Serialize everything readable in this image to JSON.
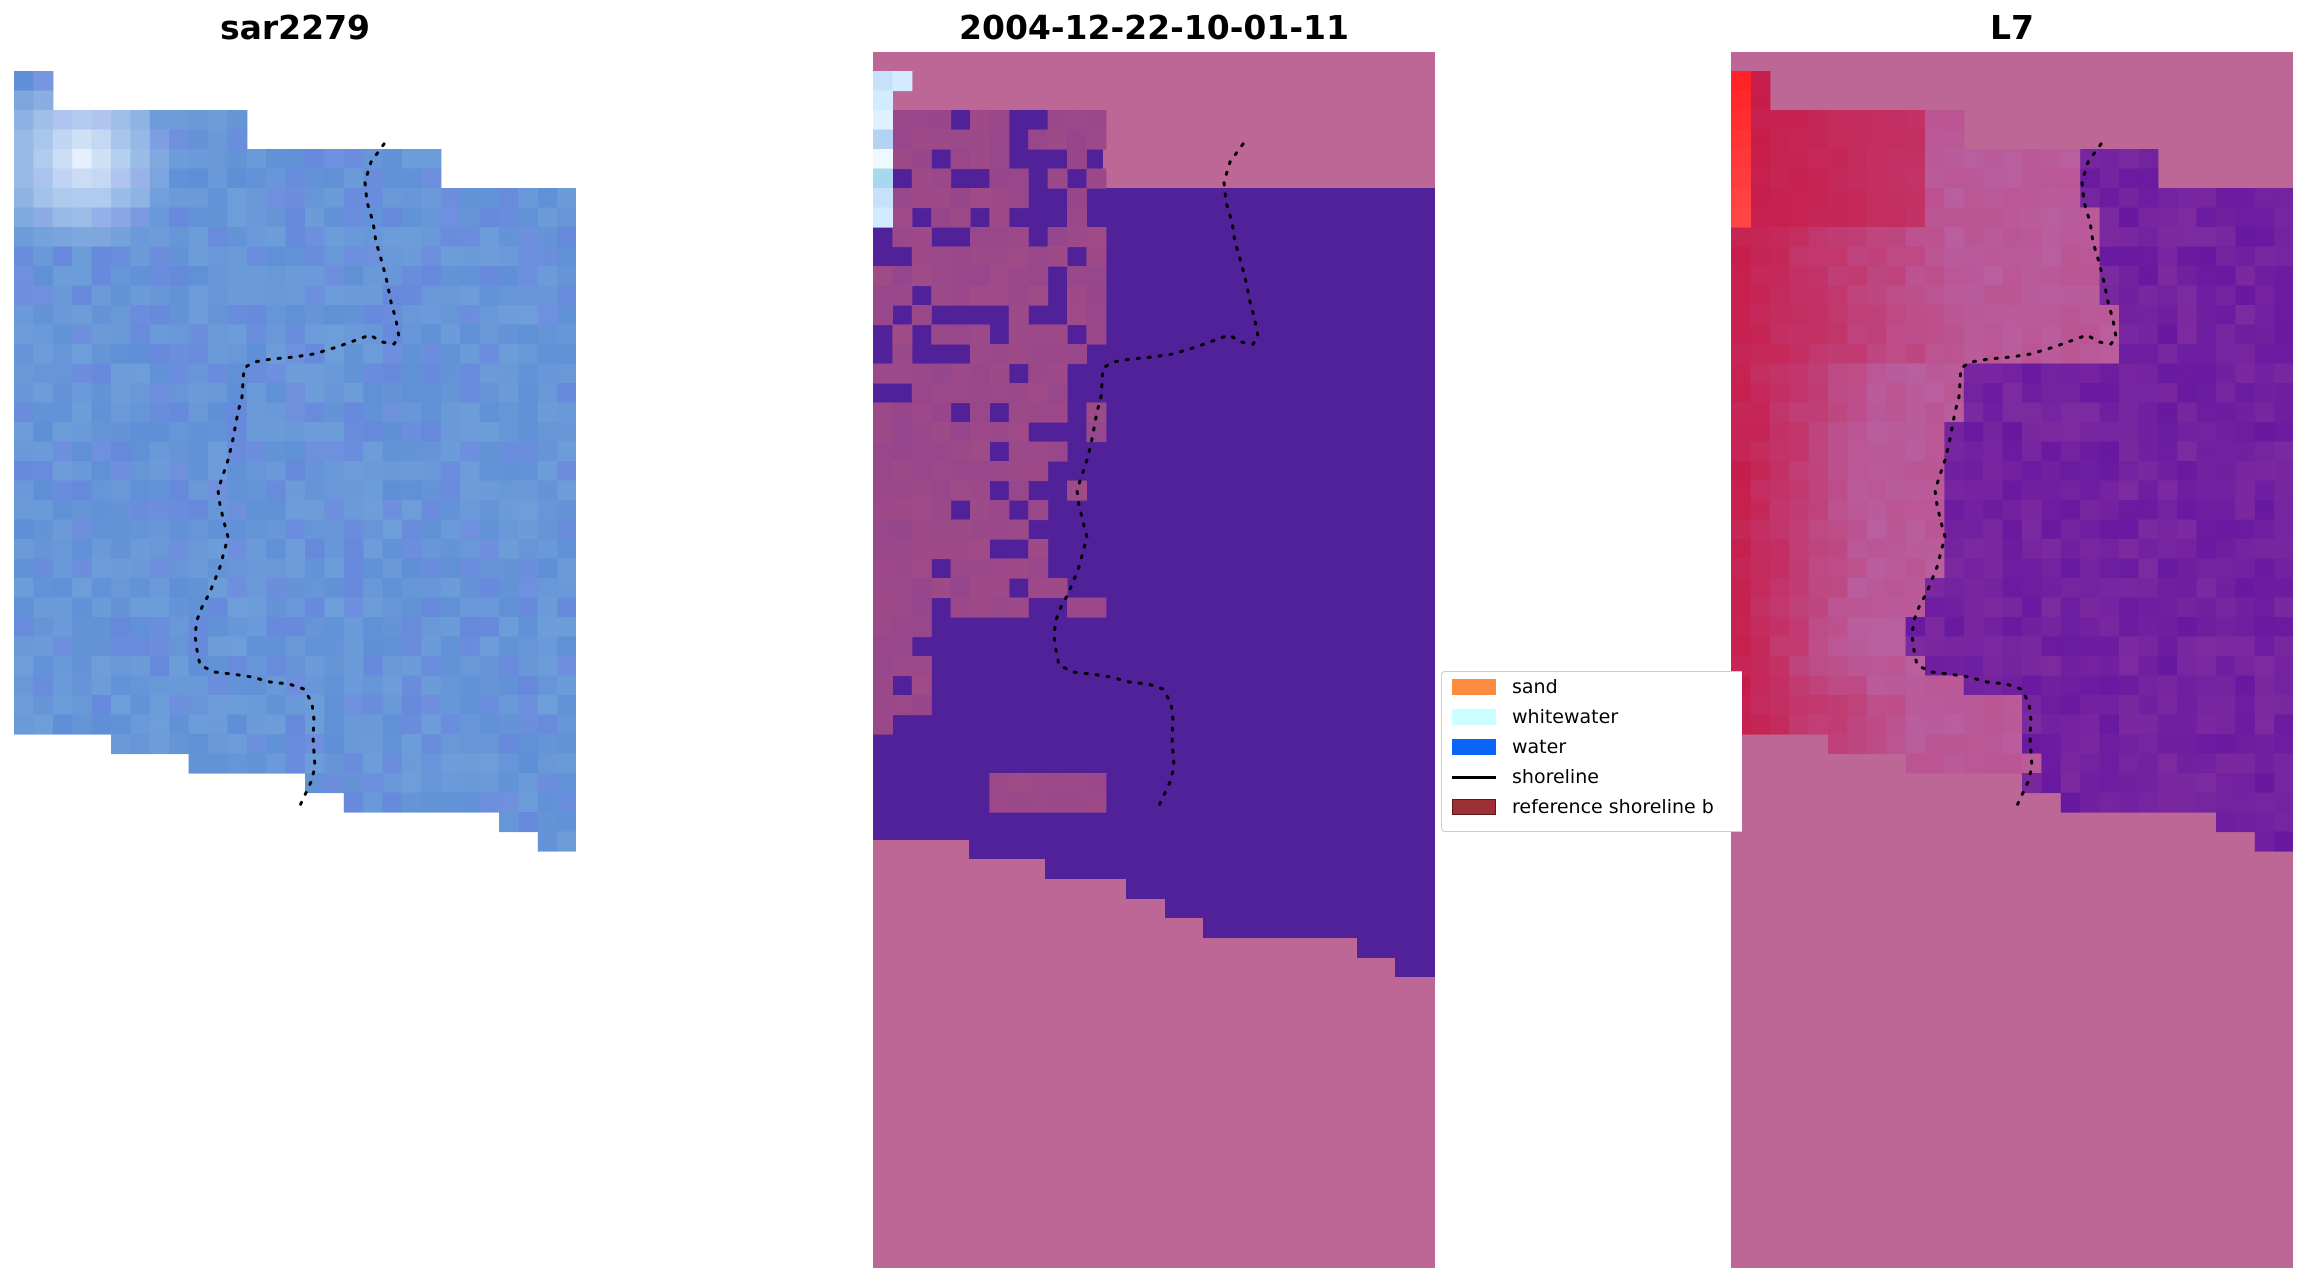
{
  "panels": [
    {
      "title": "sar2279",
      "icon": "image-panel"
    },
    {
      "title": "2004-12-22-10-01-11",
      "icon": "classified-panel"
    },
    {
      "title": "L7",
      "icon": "index-panel"
    }
  ],
  "legend": {
    "items": [
      {
        "label": "sand",
        "color": "#fb8b3f",
        "kind": "patch"
      },
      {
        "label": "whitewater",
        "color": "#ccffff",
        "kind": "patch"
      },
      {
        "label": "water",
        "color": "#0a64f5",
        "kind": "patch"
      },
      {
        "label": "shoreline",
        "color": "#000000",
        "kind": "line"
      },
      {
        "label": "reference shoreline b",
        "color": "#9c2f33",
        "kind": "patch"
      }
    ]
  },
  "colors": {
    "rgb_blue": "#5f8fd6",
    "water_class": "#51219a",
    "masked": "#bd6796",
    "index_purple": "#6a1aa2",
    "index_red": "#c41a45"
  }
}
